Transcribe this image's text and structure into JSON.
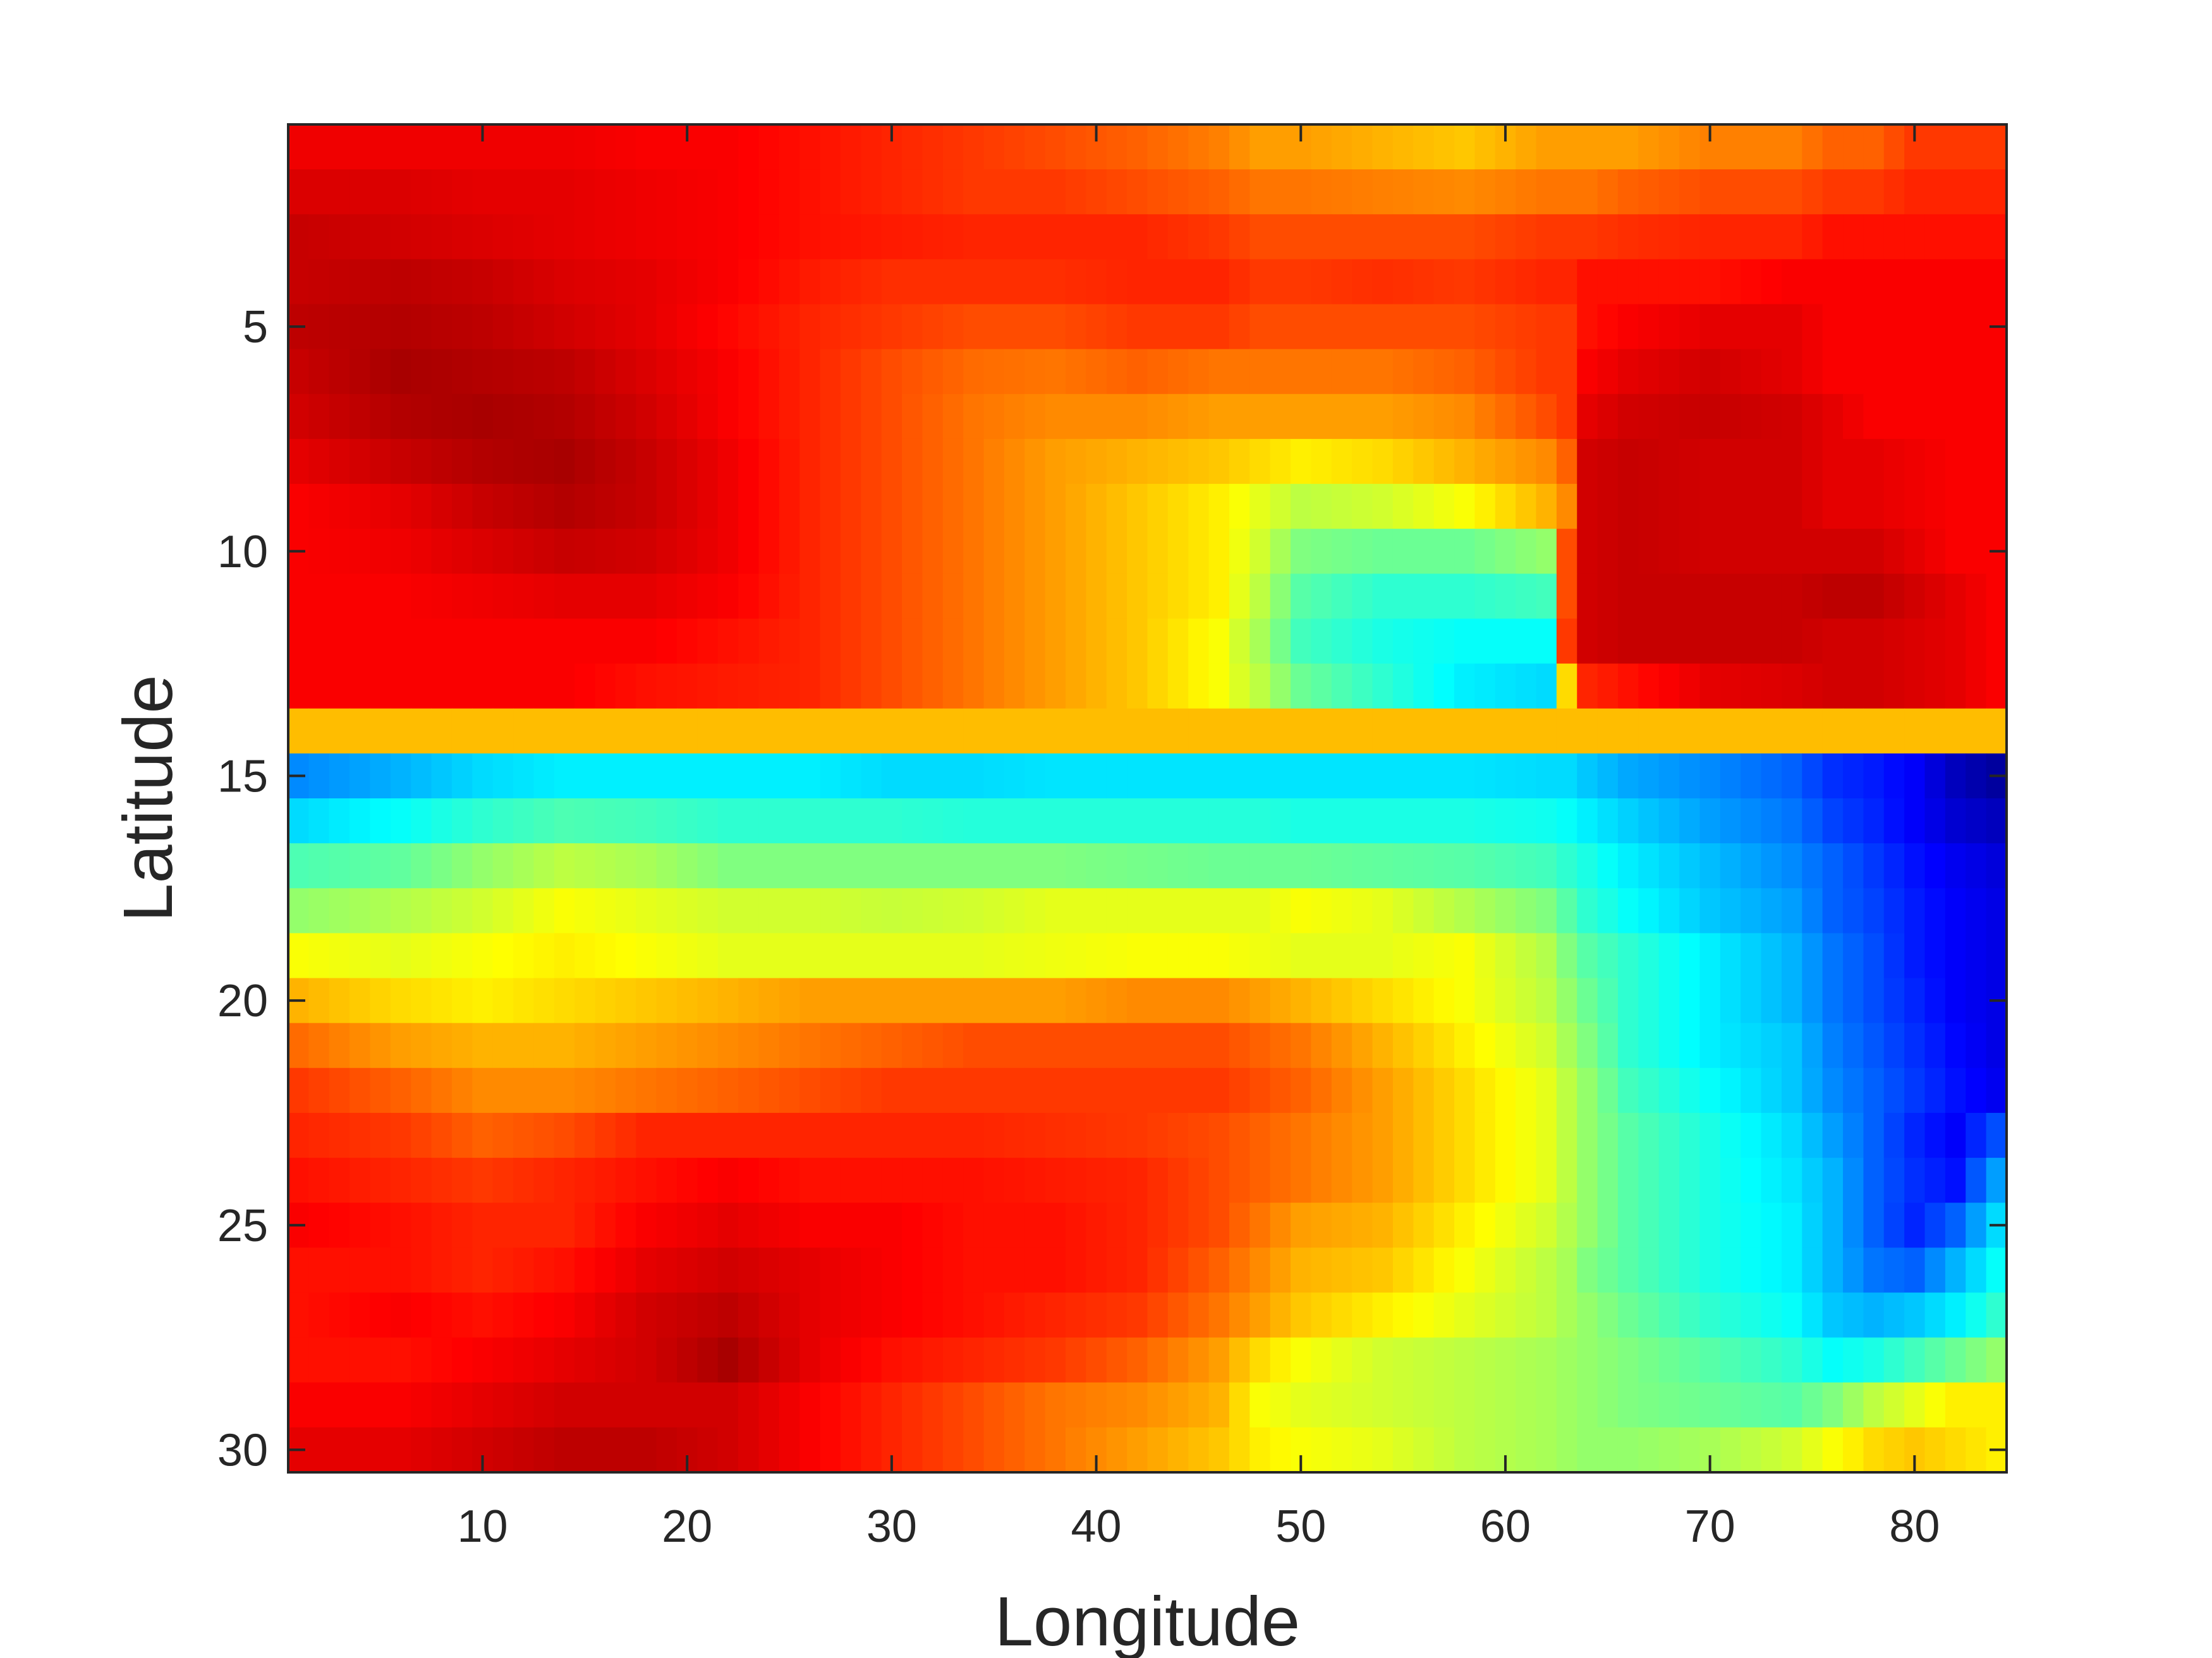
{
  "chart_data": {
    "type": "heatmap",
    "title": "",
    "xlabel": "Longitude",
    "ylabel": "Latitude",
    "xlim": [
      0.5,
      84.5
    ],
    "ylim": [
      0.5,
      30.5
    ],
    "y_reversed": true,
    "x_ticks": [
      10,
      20,
      30,
      40,
      50,
      60,
      70,
      80
    ],
    "y_ticks": [
      5,
      10,
      15,
      20,
      25,
      30
    ],
    "colormap": "jet",
    "color_range": [
      0,
      1
    ],
    "grid": false,
    "legend": "none",
    "n_cols": 84,
    "n_rows": 30,
    "col_knots": [
      1,
      6,
      10,
      14,
      18,
      22,
      26,
      30,
      34,
      38,
      42,
      46,
      48,
      50,
      54,
      58,
      62,
      63,
      64,
      66,
      70,
      74,
      76,
      78,
      80,
      82,
      84
    ],
    "rows": [
      {
        "lat": 1,
        "v": [
          0.89,
          0.89,
          0.89,
          0.89,
          0.88,
          0.88,
          0.86,
          0.84,
          0.82,
          0.8,
          0.78,
          0.75,
          0.72,
          0.72,
          0.7,
          0.68,
          0.72,
          0.72,
          0.72,
          0.72,
          0.75,
          0.75,
          0.78,
          0.78,
          0.82,
          0.82,
          0.82
        ]
      },
      {
        "lat": 2,
        "v": [
          0.91,
          0.91,
          0.9,
          0.9,
          0.89,
          0.88,
          0.86,
          0.84,
          0.82,
          0.82,
          0.8,
          0.78,
          0.76,
          0.76,
          0.75,
          0.74,
          0.76,
          0.76,
          0.76,
          0.78,
          0.8,
          0.8,
          0.82,
          0.82,
          0.84,
          0.84,
          0.84
        ]
      },
      {
        "lat": 3,
        "v": [
          0.93,
          0.92,
          0.91,
          0.9,
          0.89,
          0.88,
          0.86,
          0.85,
          0.84,
          0.84,
          0.84,
          0.82,
          0.8,
          0.8,
          0.8,
          0.8,
          0.82,
          0.82,
          0.82,
          0.83,
          0.84,
          0.84,
          0.86,
          0.86,
          0.86,
          0.86,
          0.86
        ]
      },
      {
        "lat": 4,
        "v": [
          0.93,
          0.94,
          0.93,
          0.91,
          0.9,
          0.88,
          0.85,
          0.83,
          0.83,
          0.83,
          0.84,
          0.84,
          0.82,
          0.82,
          0.83,
          0.82,
          0.84,
          0.84,
          0.86,
          0.86,
          0.86,
          0.88,
          0.88,
          0.88,
          0.88,
          0.88,
          0.88
        ]
      },
      {
        "lat": 5,
        "v": [
          0.94,
          0.95,
          0.94,
          0.92,
          0.9,
          0.87,
          0.84,
          0.82,
          0.8,
          0.8,
          0.82,
          0.82,
          0.8,
          0.8,
          0.8,
          0.8,
          0.82,
          0.82,
          0.86,
          0.88,
          0.9,
          0.9,
          0.88,
          0.88,
          0.88,
          0.88,
          0.88
        ]
      },
      {
        "lat": 6,
        "v": [
          0.93,
          0.96,
          0.95,
          0.94,
          0.91,
          0.88,
          0.84,
          0.8,
          0.77,
          0.76,
          0.78,
          0.76,
          0.76,
          0.76,
          0.76,
          0.78,
          0.82,
          0.82,
          0.88,
          0.9,
          0.92,
          0.9,
          0.88,
          0.88,
          0.88,
          0.88,
          0.88
        ]
      },
      {
        "lat": 7,
        "v": [
          0.92,
          0.95,
          0.96,
          0.95,
          0.92,
          0.88,
          0.84,
          0.8,
          0.76,
          0.74,
          0.74,
          0.72,
          0.72,
          0.72,
          0.72,
          0.74,
          0.8,
          0.82,
          0.9,
          0.92,
          0.93,
          0.92,
          0.9,
          0.88,
          0.88,
          0.88,
          0.88
        ]
      },
      {
        "lat": 8,
        "v": [
          0.9,
          0.93,
          0.95,
          0.96,
          0.93,
          0.89,
          0.84,
          0.8,
          0.76,
          0.72,
          0.7,
          0.68,
          0.66,
          0.64,
          0.66,
          0.7,
          0.74,
          0.78,
          0.92,
          0.93,
          0.92,
          0.92,
          0.9,
          0.9,
          0.89,
          0.88,
          0.88
        ]
      },
      {
        "lat": 9,
        "v": [
          0.88,
          0.9,
          0.93,
          0.95,
          0.93,
          0.89,
          0.84,
          0.8,
          0.76,
          0.72,
          0.68,
          0.64,
          0.6,
          0.56,
          0.58,
          0.62,
          0.7,
          0.74,
          0.92,
          0.93,
          0.92,
          0.92,
          0.9,
          0.9,
          0.89,
          0.88,
          0.88
        ]
      },
      {
        "lat": 10,
        "v": [
          0.88,
          0.89,
          0.91,
          0.93,
          0.92,
          0.89,
          0.84,
          0.8,
          0.76,
          0.72,
          0.68,
          0.64,
          0.58,
          0.5,
          0.48,
          0.48,
          0.52,
          0.8,
          0.92,
          0.93,
          0.92,
          0.92,
          0.92,
          0.92,
          0.9,
          0.88,
          0.88
        ]
      },
      {
        "lat": 11,
        "v": [
          0.88,
          0.88,
          0.89,
          0.9,
          0.9,
          0.88,
          0.84,
          0.8,
          0.76,
          0.72,
          0.68,
          0.64,
          0.56,
          0.46,
          0.42,
          0.42,
          0.44,
          0.8,
          0.92,
          0.93,
          0.93,
          0.93,
          0.94,
          0.94,
          0.92,
          0.9,
          0.88
        ]
      },
      {
        "lat": 12,
        "v": [
          0.88,
          0.88,
          0.88,
          0.88,
          0.88,
          0.86,
          0.84,
          0.8,
          0.76,
          0.72,
          0.68,
          0.62,
          0.54,
          0.44,
          0.4,
          0.38,
          0.38,
          0.82,
          0.92,
          0.93,
          0.93,
          0.93,
          0.92,
          0.92,
          0.91,
          0.9,
          0.88
        ]
      },
      {
        "lat": 13,
        "v": [
          0.88,
          0.88,
          0.88,
          0.88,
          0.86,
          0.85,
          0.84,
          0.8,
          0.76,
          0.72,
          0.68,
          0.62,
          0.56,
          0.48,
          0.42,
          0.36,
          0.34,
          0.66,
          0.84,
          0.86,
          0.9,
          0.91,
          0.92,
          0.92,
          0.91,
          0.9,
          0.88
        ]
      },
      {
        "lat": 14,
        "v": [
          0.69,
          0.69,
          0.69,
          0.69,
          0.69,
          0.69,
          0.69,
          0.69,
          0.69,
          0.69,
          0.69,
          0.69,
          0.69,
          0.69,
          0.69,
          0.69,
          0.69,
          0.69,
          0.69,
          0.69,
          0.69,
          0.69,
          0.69,
          0.69,
          0.69,
          0.69,
          0.69
        ]
      },
      {
        "lat": 15,
        "v": [
          0.26,
          0.3,
          0.34,
          0.36,
          0.36,
          0.36,
          0.36,
          0.34,
          0.34,
          0.35,
          0.35,
          0.35,
          0.35,
          0.35,
          0.35,
          0.35,
          0.34,
          0.34,
          0.32,
          0.29,
          0.26,
          0.22,
          0.17,
          0.15,
          0.12,
          0.06,
          0.03
        ]
      },
      {
        "lat": 16,
        "v": [
          0.34,
          0.38,
          0.42,
          0.45,
          0.44,
          0.42,
          0.42,
          0.42,
          0.41,
          0.41,
          0.41,
          0.41,
          0.41,
          0.4,
          0.4,
          0.4,
          0.39,
          0.38,
          0.36,
          0.33,
          0.28,
          0.24,
          0.19,
          0.16,
          0.12,
          0.08,
          0.06
        ]
      },
      {
        "lat": 17,
        "v": [
          0.45,
          0.47,
          0.52,
          0.56,
          0.54,
          0.5,
          0.5,
          0.5,
          0.5,
          0.5,
          0.49,
          0.48,
          0.48,
          0.48,
          0.47,
          0.46,
          0.44,
          0.42,
          0.4,
          0.36,
          0.31,
          0.26,
          0.22,
          0.18,
          0.14,
          0.11,
          0.09
        ]
      },
      {
        "lat": 18,
        "v": [
          0.52,
          0.55,
          0.58,
          0.62,
          0.6,
          0.58,
          0.58,
          0.57,
          0.58,
          0.6,
          0.6,
          0.6,
          0.6,
          0.62,
          0.6,
          0.55,
          0.5,
          0.46,
          0.42,
          0.38,
          0.32,
          0.28,
          0.22,
          0.19,
          0.15,
          0.12,
          0.1
        ]
      },
      {
        "lat": 19,
        "v": [
          0.62,
          0.6,
          0.62,
          0.64,
          0.62,
          0.6,
          0.6,
          0.6,
          0.6,
          0.61,
          0.62,
          0.62,
          0.61,
          0.6,
          0.6,
          0.62,
          0.55,
          0.5,
          0.46,
          0.42,
          0.36,
          0.3,
          0.24,
          0.2,
          0.15,
          0.12,
          0.1
        ]
      },
      {
        "lat": 20,
        "v": [
          0.7,
          0.66,
          0.64,
          0.66,
          0.68,
          0.7,
          0.72,
          0.72,
          0.72,
          0.72,
          0.74,
          0.74,
          0.72,
          0.7,
          0.66,
          0.62,
          0.56,
          0.52,
          0.48,
          0.42,
          0.36,
          0.3,
          0.24,
          0.2,
          0.16,
          0.12,
          0.1
        ]
      },
      {
        "lat": 21,
        "v": [
          0.77,
          0.72,
          0.7,
          0.7,
          0.72,
          0.74,
          0.76,
          0.78,
          0.8,
          0.8,
          0.8,
          0.8,
          0.78,
          0.76,
          0.7,
          0.64,
          0.58,
          0.54,
          0.5,
          0.42,
          0.36,
          0.32,
          0.25,
          0.21,
          0.17,
          0.13,
          0.1
        ]
      },
      {
        "lat": 22,
        "v": [
          0.82,
          0.78,
          0.74,
          0.74,
          0.76,
          0.78,
          0.8,
          0.82,
          0.82,
          0.82,
          0.82,
          0.82,
          0.8,
          0.78,
          0.72,
          0.66,
          0.6,
          0.56,
          0.52,
          0.44,
          0.38,
          0.32,
          0.26,
          0.22,
          0.18,
          0.14,
          0.11
        ]
      },
      {
        "lat": 23,
        "v": [
          0.84,
          0.82,
          0.78,
          0.8,
          0.84,
          0.84,
          0.84,
          0.84,
          0.84,
          0.83,
          0.82,
          0.8,
          0.78,
          0.76,
          0.72,
          0.66,
          0.6,
          0.56,
          0.52,
          0.46,
          0.4,
          0.34,
          0.28,
          0.22,
          0.16,
          0.12,
          0.2
        ]
      },
      {
        "lat": 24,
        "v": [
          0.86,
          0.84,
          0.82,
          0.84,
          0.86,
          0.88,
          0.86,
          0.86,
          0.86,
          0.85,
          0.84,
          0.8,
          0.78,
          0.76,
          0.72,
          0.66,
          0.6,
          0.56,
          0.52,
          0.46,
          0.4,
          0.35,
          0.3,
          0.22,
          0.17,
          0.14,
          0.28
        ]
      },
      {
        "lat": 25,
        "v": [
          0.88,
          0.86,
          0.84,
          0.84,
          0.88,
          0.9,
          0.88,
          0.88,
          0.86,
          0.86,
          0.84,
          0.8,
          0.76,
          0.72,
          0.7,
          0.64,
          0.58,
          0.55,
          0.52,
          0.46,
          0.4,
          0.36,
          0.3,
          0.22,
          0.16,
          0.22,
          0.34
        ]
      },
      {
        "lat": 26,
        "v": [
          0.86,
          0.86,
          0.84,
          0.86,
          0.9,
          0.92,
          0.9,
          0.88,
          0.86,
          0.86,
          0.84,
          0.78,
          0.74,
          0.7,
          0.68,
          0.62,
          0.56,
          0.54,
          0.5,
          0.46,
          0.4,
          0.36,
          0.3,
          0.24,
          0.22,
          0.3,
          0.38
        ]
      },
      {
        "lat": 27,
        "v": [
          0.86,
          0.88,
          0.86,
          0.88,
          0.92,
          0.94,
          0.9,
          0.88,
          0.86,
          0.84,
          0.82,
          0.76,
          0.72,
          0.68,
          0.64,
          0.6,
          0.56,
          0.54,
          0.52,
          0.48,
          0.42,
          0.38,
          0.32,
          0.3,
          0.32,
          0.36,
          0.42
        ]
      },
      {
        "lat": 28,
        "v": [
          0.86,
          0.86,
          0.88,
          0.9,
          0.92,
          0.96,
          0.9,
          0.86,
          0.84,
          0.82,
          0.78,
          0.72,
          0.66,
          0.62,
          0.58,
          0.56,
          0.54,
          0.53,
          0.52,
          0.5,
          0.46,
          0.42,
          0.38,
          0.4,
          0.44,
          0.48,
          0.52
        ]
      },
      {
        "lat": 29,
        "v": [
          0.88,
          0.88,
          0.9,
          0.92,
          0.92,
          0.92,
          0.88,
          0.84,
          0.8,
          0.76,
          0.74,
          0.7,
          0.62,
          0.6,
          0.58,
          0.56,
          0.54,
          0.53,
          0.52,
          0.5,
          0.48,
          0.46,
          0.5,
          0.56,
          0.6,
          0.64,
          0.64
        ]
      },
      {
        "lat": 30,
        "v": [
          0.9,
          0.9,
          0.92,
          0.94,
          0.94,
          0.92,
          0.88,
          0.84,
          0.8,
          0.76,
          0.72,
          0.68,
          0.64,
          0.62,
          0.6,
          0.56,
          0.54,
          0.53,
          0.52,
          0.52,
          0.54,
          0.58,
          0.62,
          0.66,
          0.68,
          0.66,
          0.64
        ]
      }
    ]
  }
}
